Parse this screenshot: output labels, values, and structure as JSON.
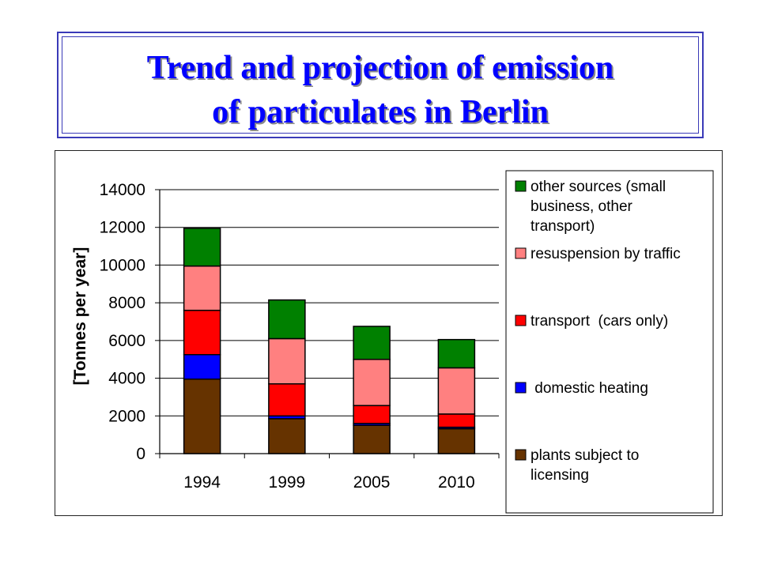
{
  "slide": {
    "title_line1": "Trend and projection of emission",
    "title_line2": "of particulates in Berlin"
  },
  "chart_data": {
    "type": "bar",
    "stacked": true,
    "categories": [
      "1994",
      "1999",
      "2005",
      "2010"
    ],
    "ylabel": "[Tonnes per year]",
    "ylim": [
      0,
      14000
    ],
    "yticks": [
      0,
      2000,
      4000,
      6000,
      8000,
      10000,
      12000,
      14000
    ],
    "grid": true,
    "legend_position": "right",
    "series": [
      {
        "name": "plants subject to licensing",
        "color": "#663300",
        "values": [
          3950,
          1850,
          1500,
          1320
        ]
      },
      {
        "name": "domestic heating",
        "color": "#0000ff",
        "values": [
          1300,
          150,
          100,
          80
        ]
      },
      {
        "name": "transport  (cars only)",
        "color": "#ff0000",
        "values": [
          2350,
          1700,
          950,
          700
        ]
      },
      {
        "name": "resuspension by traffic",
        "color": "#ff8080",
        "values": [
          2350,
          2400,
          2450,
          2450
        ]
      },
      {
        "name": "other sources (small business, other transport)",
        "color": "#008000",
        "values": [
          2000,
          2050,
          1750,
          1500
        ]
      }
    ],
    "legend_order": [
      4,
      3,
      2,
      1,
      0
    ],
    "legend_lines": [
      [
        "other sources (small",
        "business, other",
        "transport)"
      ],
      [
        "resuspension by traffic"
      ],
      [
        "transport  (cars only)"
      ],
      [
        " domestic heating"
      ],
      [
        "plants subject to",
        "licensing"
      ]
    ]
  }
}
